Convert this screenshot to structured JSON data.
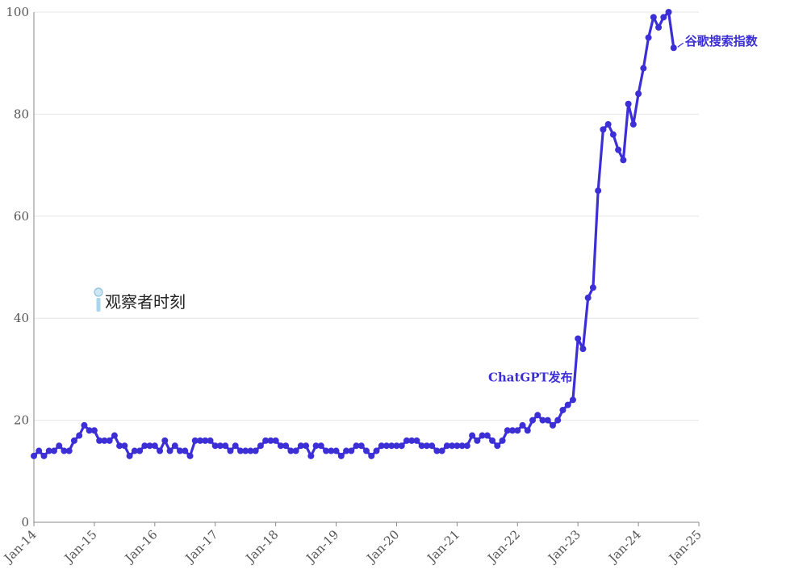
{
  "chart_data": {
    "type": "line",
    "x_ticks": [
      "Jan-14",
      "Jan-15",
      "Jan-16",
      "Jan-17",
      "Jan-18",
      "Jan-19",
      "Jan-20",
      "Jan-21",
      "Jan-22",
      "Jan-23",
      "Jan-24",
      "Jan-25"
    ],
    "y_ticks": [
      "0",
      "20",
      "40",
      "60",
      "80",
      "100"
    ],
    "ylim": [
      0,
      100
    ],
    "grid": true,
    "series": [
      {
        "name": "谷歌搜索指数",
        "color": "#3d2fd6",
        "values": [
          13,
          14,
          13,
          14,
          14,
          15,
          14,
          14,
          16,
          17,
          19,
          18,
          18,
          16,
          16,
          16,
          17,
          15,
          15,
          13,
          14,
          14,
          15,
          15,
          15,
          14,
          16,
          14,
          15,
          14,
          14,
          13,
          16,
          16,
          16,
          16,
          15,
          15,
          15,
          14,
          15,
          14,
          14,
          14,
          14,
          15,
          16,
          16,
          16,
          15,
          15,
          14,
          14,
          15,
          15,
          13,
          15,
          15,
          14,
          14,
          14,
          13,
          14,
          14,
          15,
          15,
          14,
          13,
          14,
          15,
          15,
          15,
          15,
          15,
          16,
          16,
          16,
          15,
          15,
          15,
          14,
          14,
          15,
          15,
          15,
          15,
          15,
          17,
          16,
          17,
          17,
          16,
          15,
          16,
          18,
          18,
          18,
          19,
          18,
          20,
          21,
          20,
          20,
          19,
          20,
          22,
          23,
          24,
          36,
          34,
          44,
          46,
          65,
          77,
          78,
          76,
          73,
          71,
          82,
          78,
          84,
          89,
          95,
          99,
          97,
          99,
          100,
          93
        ]
      }
    ],
    "start_label": "Jan-14",
    "annotations": [
      {
        "text": "ChatGPT发布",
        "x_label": "Nov-22"
      },
      {
        "text": "谷歌搜索指数",
        "x_label": "Jul-24"
      }
    ],
    "logo_text": "观察者时刻"
  }
}
